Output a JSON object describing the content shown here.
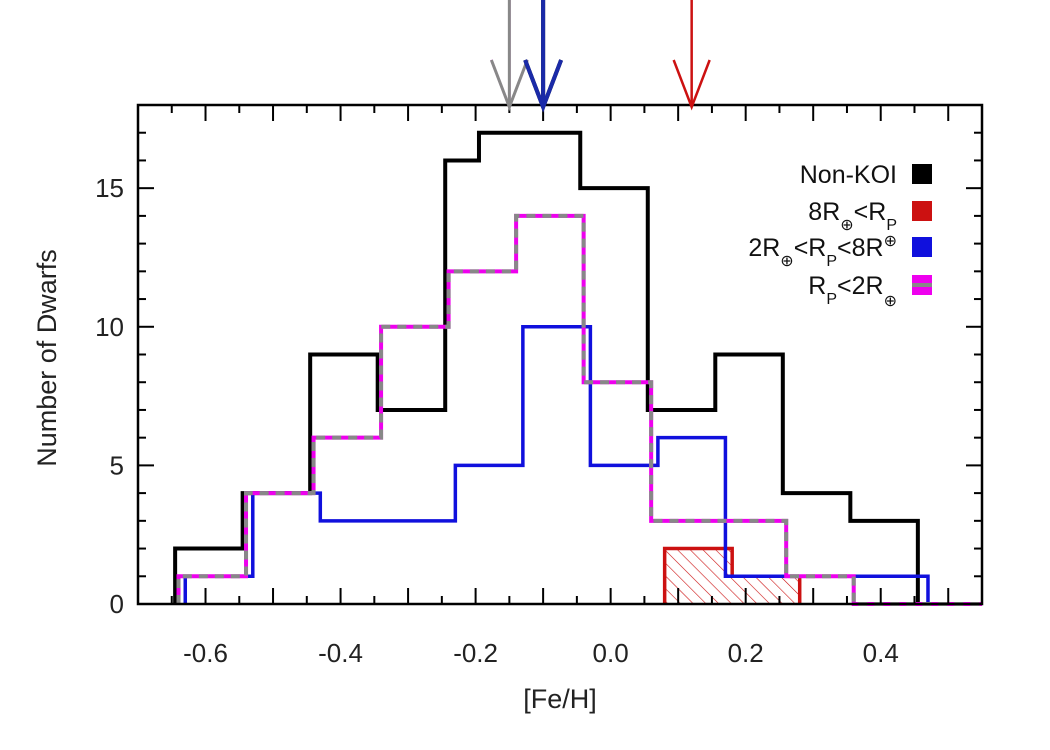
{
  "chart_data": {
    "type": "histogram",
    "xlabel": "[Fe/H]",
    "ylabel": "Number of Dwarfs",
    "xlim": [
      -0.7,
      0.55
    ],
    "ylim": [
      0,
      18
    ],
    "xticks": [
      -0.6,
      -0.4,
      -0.2,
      0.0,
      0.2,
      0.4
    ],
    "xtick_labels": [
      "-0.6",
      "-0.4",
      "-0.2",
      "0.0",
      "0.2",
      "0.4"
    ],
    "yticks": [
      0,
      5,
      10,
      15
    ],
    "ytick_labels": [
      "0",
      "5",
      "10",
      "15"
    ],
    "legend_placement": "top-right",
    "series": [
      {
        "key": "nonkoi",
        "color": "#000000",
        "style": "solid",
        "edges": [
          -0.645,
          -0.545,
          -0.445,
          -0.345,
          -0.245,
          -0.195,
          -0.145,
          -0.045,
          0.055,
          0.155,
          0.255,
          0.355,
          0.455
        ],
        "counts": [
          2,
          4,
          9,
          7,
          16,
          17,
          17,
          15,
          7,
          9,
          4,
          3
        ],
        "mean": -0.1
      },
      {
        "key": "large",
        "color": "#cc1111",
        "style": "hatched",
        "edges": [
          0.08,
          0.18,
          0.28
        ],
        "counts": [
          2,
          1
        ],
        "mean": 0.12
      },
      {
        "key": "medium",
        "color": "#1010dd",
        "style": "solid",
        "edges": [
          -0.63,
          -0.53,
          -0.43,
          -0.33,
          -0.23,
          -0.13,
          -0.03,
          0.07,
          0.17,
          0.27,
          0.37,
          0.47
        ],
        "counts": [
          1,
          4,
          3,
          3,
          5,
          10,
          5,
          6,
          1,
          1,
          1
        ],
        "mean": -0.1
      },
      {
        "key": "small",
        "color": "#ee00ee",
        "dash_color": "#888888",
        "style": "dashed",
        "edges": [
          -0.64,
          -0.54,
          -0.44,
          -0.34,
          -0.24,
          -0.14,
          -0.04,
          0.06,
          0.16,
          0.26,
          0.36,
          0.55
        ],
        "counts": [
          1,
          4,
          6,
          10,
          12,
          14,
          8,
          3,
          3,
          1,
          0
        ],
        "mean": -0.15
      }
    ],
    "legend": {
      "nonkoi": {
        "label": "Non-KOI",
        "color": "#000000"
      },
      "large": {
        "part1": "8R",
        "sub1": "⊕",
        "part2": "<R",
        "sub2": "P",
        "color": "#cc1111"
      },
      "medium": {
        "part1": "2R",
        "sub1": "⊕",
        "part2": "<R",
        "sub2": "P",
        "part3": "<8R",
        "sup3": "⊕",
        "color": "#1010dd"
      },
      "small": {
        "part1": "R",
        "sub1": "P",
        "part2": "<2R",
        "sub2": "⊕",
        "color": "#ee00ee"
      }
    }
  }
}
